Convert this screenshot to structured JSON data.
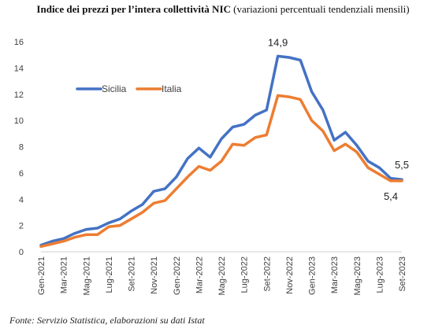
{
  "title_bold": "Indice dei prezzi per l’intera collettività NIC",
  "title_rest": " (variazioni percentuali tendenziali mensili)",
  "source": "Fonte: Servizio Statistica, elaborazioni su dati Istat",
  "chart_data": {
    "type": "line",
    "title": "Indice dei prezzi per l’intera collettività NIC (variazioni percentuali tendenziali mensili)",
    "xlabel": "",
    "ylabel": "",
    "ylim": [
      0,
      16
    ],
    "yticks": [
      0,
      2,
      4,
      6,
      8,
      10,
      12,
      14,
      16
    ],
    "grid": false,
    "legend_position": "upper-left",
    "x": [
      "Gen-2021",
      "Feb-2021",
      "Mar-2021",
      "Apr-2021",
      "Mag-2021",
      "Giu-2021",
      "Lug-2021",
      "Ago-2021",
      "Set-2021",
      "Ott-2021",
      "Nov-2021",
      "Dic-2021",
      "Gen-2022",
      "Feb-2022",
      "Mar-2022",
      "Apr-2022",
      "Mag-2022",
      "Giu-2022",
      "Lug-2022",
      "Ago-2022",
      "Set-2022",
      "Ott-2022",
      "Nov-2022",
      "Dic-2022",
      "Gen-2023",
      "Feb-2023",
      "Mar-2023",
      "Apr-2023",
      "Mag-2023",
      "Giu-2023",
      "Lug-2023",
      "Ago-2023",
      "Set-2023"
    ],
    "x_tick_labels": [
      "Gen-2021",
      "Mar-2021",
      "Mag-2021",
      "Lug-2021",
      "Set-2021",
      "Nov-2021",
      "Gen-2022",
      "Mar-2022",
      "Mag-2022",
      "Lug-2022",
      "Set-2022",
      "Nov-2022",
      "Gen-2023",
      "Mar-2023",
      "Mag-2023",
      "Lug-2023",
      "Set-2023"
    ],
    "series": [
      {
        "name": "Sicilia",
        "color": "#4472C4",
        "values": [
          0.5,
          0.8,
          1.0,
          1.4,
          1.7,
          1.8,
          2.2,
          2.5,
          3.1,
          3.6,
          4.6,
          4.8,
          5.7,
          7.1,
          7.9,
          7.2,
          8.6,
          9.5,
          9.7,
          10.4,
          10.8,
          14.9,
          14.8,
          14.6,
          12.2,
          10.8,
          8.5,
          9.1,
          8.1,
          6.9,
          6.4,
          5.6,
          5.5
        ],
        "end_label": "5,5"
      },
      {
        "name": "Italia",
        "color": "#ED7D31",
        "values": [
          0.4,
          0.6,
          0.8,
          1.1,
          1.3,
          1.3,
          1.9,
          2.0,
          2.5,
          3.0,
          3.7,
          3.9,
          4.8,
          5.7,
          6.5,
          6.2,
          6.9,
          8.2,
          8.1,
          8.7,
          8.9,
          11.9,
          11.8,
          11.6,
          10.0,
          9.2,
          7.7,
          8.2,
          7.6,
          6.4,
          5.9,
          5.4,
          5.4
        ],
        "end_label": "5,4"
      }
    ],
    "peak_label": "14,9"
  }
}
